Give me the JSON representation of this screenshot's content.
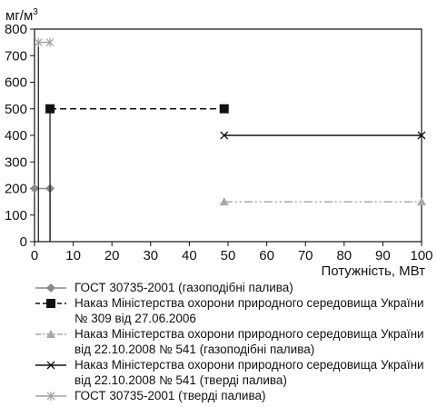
{
  "chart_data": {
    "type": "line",
    "ylabel": "мг/м",
    "ylabel_sup": "3",
    "xlabel": "Потужність, МВт",
    "xlim": [
      0,
      100
    ],
    "ylim": [
      0,
      800
    ],
    "x_ticks": [
      "0",
      "10",
      "20",
      "30",
      "40",
      "50",
      "60",
      "70",
      "80",
      "90",
      "100"
    ],
    "y_ticks": [
      "0",
      "100",
      "200",
      "300",
      "400",
      "500",
      "600",
      "700",
      "800"
    ],
    "grid": false,
    "legend_position": "bottom",
    "series": [
      {
        "name": "ГОСТ 30735-2001 (газоподібні палива)",
        "marker": "diamond",
        "dash": "solid",
        "color": "#8a8a8a",
        "points": [
          [
            0,
            200
          ],
          [
            4,
            200
          ]
        ],
        "drop_line_x": 4
      },
      {
        "name": "Наказ Міністерства охорони природного середовища України № 309 від 27.06.2006",
        "marker": "square",
        "dash": "dashed",
        "color": "#111111",
        "points": [
          [
            4,
            500
          ],
          [
            49,
            500
          ]
        ],
        "drop_line_x": 4
      },
      {
        "name": "Наказ Міністерства охорони природного середовища України від 22.10.2008 № 541 (газоподібні палива)",
        "marker": "triangle",
        "dash": "dashdotdot",
        "color": "#a8a8a8",
        "points": [
          [
            49,
            150
          ],
          [
            100,
            150
          ]
        ]
      },
      {
        "name": "Наказ Міністерства охорони природного середовища України від 22.10.2008 № 541 (тверді палива)",
        "marker": "x",
        "dash": "solid",
        "color": "#111111",
        "points": [
          [
            49,
            400
          ],
          [
            100,
            400
          ]
        ]
      },
      {
        "name": "ГОСТ 30735-2001 (тверді палива)",
        "marker": "star",
        "dash": "solid",
        "color": "#a0a0a0",
        "points": [
          [
            1,
            750
          ],
          [
            4,
            750
          ]
        ],
        "drop_line_x": 1
      }
    ]
  },
  "legend": {
    "items": [
      [
        "ГОСТ 30735-2001 (газоподібні палива)"
      ],
      [
        "Наказ Міністерства охорони природного середовища України",
        "№ 309 від 27.06.2006"
      ],
      [
        "Наказ Міністерства охорони природного середовища України",
        "від 22.10.2008 № 541 (газоподібні палива)"
      ],
      [
        "Наказ Міністерства охорони природного середовища України",
        "від 22.10.2008 № 541 (тверді палива)"
      ],
      [
        "ГОСТ 30735-2001 (тверді палива)"
      ]
    ]
  }
}
